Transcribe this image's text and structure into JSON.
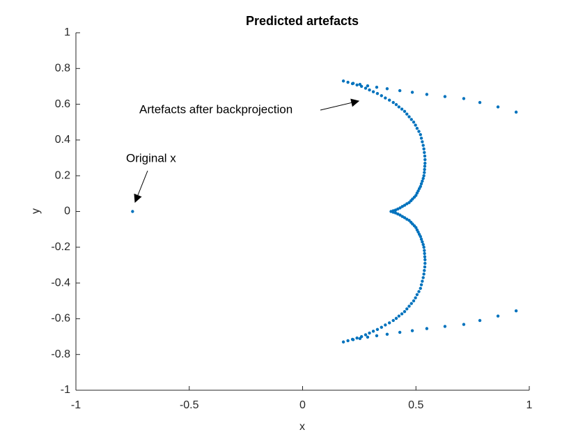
{
  "chart_data": {
    "type": "scatter",
    "title": "Predicted artefacts",
    "x_label": "x",
    "y_label": "y",
    "xlim": [
      -1,
      1
    ],
    "ylim": [
      -1,
      1
    ],
    "xticks": [
      -1,
      -0.5,
      0,
      0.5,
      1
    ],
    "yticks": [
      -1,
      -0.8,
      -0.6,
      -0.4,
      -0.2,
      0,
      0.2,
      0.4,
      0.6,
      0.8,
      1
    ],
    "grid": false,
    "annotations": [
      {
        "text": "Artefacts after backprojection"
      },
      {
        "text": "Original x"
      }
    ],
    "series": [
      {
        "color": "#0072BD",
        "x": [
          -0.75,
          0.18,
          0.2,
          0.22,
          0.24,
          0.26,
          0.278,
          0.295,
          0.312,
          0.33,
          0.348,
          0.365,
          0.383,
          0.4,
          0.413,
          0.425,
          0.438,
          0.45,
          0.46,
          0.47,
          0.48,
          0.49,
          0.498,
          0.505,
          0.513,
          0.52,
          0.524,
          0.528,
          0.532,
          0.535,
          0.537,
          0.539,
          0.54,
          0.54,
          0.539,
          0.538,
          0.537,
          0.535,
          0.532,
          0.528,
          0.524,
          0.52,
          0.515,
          0.51,
          0.505,
          0.5,
          0.493,
          0.485,
          0.478,
          0.47,
          0.46,
          0.45,
          0.44,
          0.43,
          0.42,
          0.41,
          0.4,
          0.39,
          0.223,
          0.253,
          0.287,
          0.327,
          0.373,
          0.429,
          0.484,
          0.548,
          0.628,
          0.711,
          0.782,
          0.862,
          0.942,
          0.18,
          0.2,
          0.22,
          0.24,
          0.26,
          0.278,
          0.295,
          0.312,
          0.33,
          0.348,
          0.365,
          0.383,
          0.4,
          0.413,
          0.425,
          0.438,
          0.45,
          0.46,
          0.47,
          0.48,
          0.49,
          0.498,
          0.505,
          0.513,
          0.52,
          0.524,
          0.528,
          0.532,
          0.535,
          0.537,
          0.539,
          0.54,
          0.54,
          0.539,
          0.538,
          0.537,
          0.535,
          0.532,
          0.528,
          0.524,
          0.52,
          0.515,
          0.51,
          0.505,
          0.5,
          0.493,
          0.485,
          0.478,
          0.47,
          0.46,
          0.45,
          0.44,
          0.43,
          0.42,
          0.41,
          0.4,
          0.223,
          0.253,
          0.287,
          0.327,
          0.373,
          0.429,
          0.484,
          0.548,
          0.628,
          0.711,
          0.782,
          0.862,
          0.942
        ],
        "values": [
          0,
          0.73,
          0.723,
          0.715,
          0.708,
          0.7,
          0.69,
          0.68,
          0.67,
          0.66,
          0.648,
          0.635,
          0.623,
          0.61,
          0.598,
          0.585,
          0.573,
          0.56,
          0.545,
          0.53,
          0.515,
          0.5,
          0.483,
          0.465,
          0.448,
          0.43,
          0.41,
          0.39,
          0.37,
          0.35,
          0.33,
          0.31,
          0.29,
          0.27,
          0.253,
          0.235,
          0.218,
          0.2,
          0.185,
          0.17,
          0.155,
          0.14,
          0.128,
          0.115,
          0.103,
          0.09,
          0.08,
          0.07,
          0.06,
          0.05,
          0.043,
          0.035,
          0.028,
          0.02,
          0.014,
          0.008,
          0.004,
          0,
          0.717,
          0.711,
          0.703,
          0.695,
          0.687,
          0.676,
          0.667,
          0.655,
          0.643,
          0.632,
          0.61,
          0.585,
          0.556,
          -0.73,
          -0.723,
          -0.715,
          -0.708,
          -0.7,
          -0.69,
          -0.68,
          -0.67,
          -0.66,
          -0.648,
          -0.635,
          -0.623,
          -0.61,
          -0.598,
          -0.585,
          -0.573,
          -0.56,
          -0.545,
          -0.53,
          -0.515,
          -0.5,
          -0.483,
          -0.465,
          -0.448,
          -0.43,
          -0.41,
          -0.39,
          -0.37,
          -0.35,
          -0.33,
          -0.31,
          -0.29,
          -0.27,
          -0.253,
          -0.235,
          -0.218,
          -0.2,
          -0.185,
          -0.17,
          -0.155,
          -0.14,
          -0.128,
          -0.115,
          -0.103,
          -0.09,
          -0.08,
          -0.07,
          -0.06,
          -0.05,
          -0.043,
          -0.035,
          -0.028,
          -0.02,
          -0.014,
          -0.008,
          -0.004,
          -0.717,
          -0.711,
          -0.703,
          -0.695,
          -0.687,
          -0.676,
          -0.667,
          -0.655,
          -0.643,
          -0.632,
          -0.61,
          -0.585,
          -0.556
        ]
      }
    ]
  }
}
